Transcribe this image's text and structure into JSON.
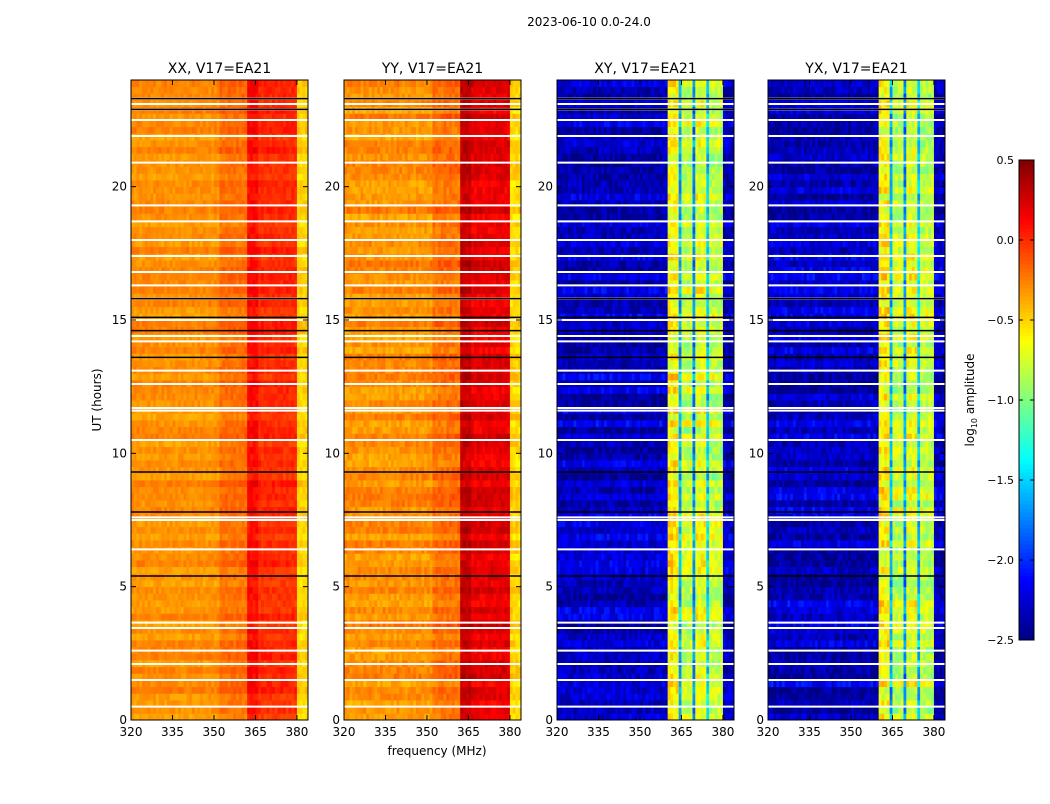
{
  "chart_data": {
    "type": "heatmap",
    "title": "2023-06-10 0.0-24.0",
    "xlabel": "frequency (MHz)",
    "ylabel": "UT (hours)",
    "xlim": [
      320,
      384
    ],
    "ylim": [
      0,
      24
    ],
    "xticks": [
      "320",
      "335",
      "350",
      "365",
      "380"
    ],
    "xtick_values": [
      320,
      335,
      350,
      365,
      380
    ],
    "yticks": [
      "0",
      "5",
      "10",
      "15",
      "20"
    ],
    "ytick_values": [
      0,
      5,
      10,
      15,
      20
    ],
    "colorbar": {
      "label_prefix": "log",
      "label_sub": "10",
      "label_suffix": " amplitude",
      "range": [
        -2.5,
        0.5
      ],
      "ticks": [
        "0.5",
        "0.0",
        "−0.5",
        "−1.0",
        "−1.5",
        "−2.0",
        "−2.5"
      ],
      "tick_values": [
        0.5,
        0.0,
        -0.5,
        -1.0,
        -1.5,
        -2.0,
        -2.5
      ],
      "colormap": "jet"
    },
    "flagged_hours_white": [
      0.5,
      1.5,
      2.1,
      2.6,
      3.45,
      3.65,
      6.4,
      7.5,
      7.6,
      10.5,
      11.6,
      11.7,
      12.6,
      13.1,
      14.2,
      14.4,
      15.0,
      15.8,
      16.3,
      16.8,
      17.4,
      18.0,
      18.7,
      19.3,
      20.9,
      21.9,
      22.5,
      22.9,
      23.1,
      23.3
    ],
    "flagged_hours_black": [
      5.4,
      7.8,
      9.3,
      13.6,
      14.6,
      15.1,
      15.8,
      22.9,
      23.3
    ],
    "panels": [
      {
        "title": "XX, V17=EA21",
        "profile": [
          [
            320,
            352,
            -0.3
          ],
          [
            352,
            362,
            -0.2
          ],
          [
            362,
            366,
            0.1
          ],
          [
            366,
            380,
            0.0
          ],
          [
            380,
            384,
            -0.5
          ]
        ],
        "noise": 0.12
      },
      {
        "title": "YY, V17=EA21",
        "profile": [
          [
            320,
            352,
            -0.3
          ],
          [
            352,
            362,
            -0.2
          ],
          [
            362,
            366,
            0.3
          ],
          [
            366,
            380,
            0.2
          ],
          [
            380,
            384,
            -0.5
          ]
        ],
        "noise": 0.15
      },
      {
        "title": "XY, V17=EA21",
        "profile": [
          [
            320,
            360,
            -2.3
          ],
          [
            360,
            364,
            -0.6
          ],
          [
            364,
            365,
            -1.6
          ],
          [
            365,
            369,
            -0.8
          ],
          [
            369,
            370,
            -1.7
          ],
          [
            370,
            374,
            -0.7
          ],
          [
            374,
            375,
            -1.5
          ],
          [
            375,
            380,
            -0.8
          ],
          [
            380,
            384,
            -2.3
          ]
        ],
        "noise": 0.3
      },
      {
        "title": "YX, V17=EA21",
        "profile": [
          [
            320,
            360,
            -2.3
          ],
          [
            360,
            364,
            -0.6
          ],
          [
            364,
            365,
            -1.6
          ],
          [
            365,
            369,
            -0.8
          ],
          [
            369,
            370,
            -1.7
          ],
          [
            370,
            374,
            -0.7
          ],
          [
            374,
            375,
            -1.5
          ],
          [
            375,
            380,
            -0.8
          ],
          [
            380,
            384,
            -2.3
          ]
        ],
        "noise": 0.3
      }
    ]
  }
}
